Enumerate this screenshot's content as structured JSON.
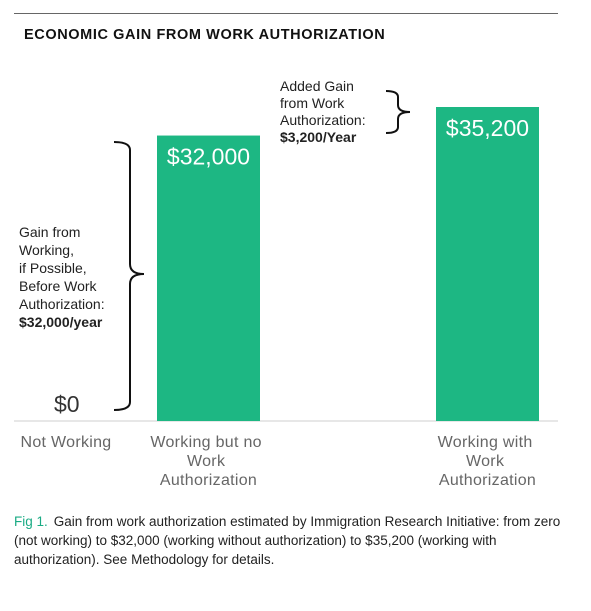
{
  "title": "ECONOMIC GAIN FROM WORK AUTHORIZATION",
  "colors": {
    "bar": "#1db783",
    "accent": "#1aab84",
    "baseline": "#cfcfcf"
  },
  "chart_data": {
    "type": "bar",
    "categories": [
      [
        "Not Working"
      ],
      [
        "Working but no",
        "Work",
        "Authorization"
      ],
      [
        "Working with",
        "Work",
        "Authorization"
      ]
    ],
    "values": [
      0,
      32000,
      35200
    ],
    "bar_labels": [
      "$0",
      "$32,000",
      "$35,200"
    ],
    "ylim": [
      0,
      35200
    ],
    "annotations": [
      {
        "lines": [
          "Gain from",
          "Working,",
          "if Possible,",
          "Before Work",
          "Authorization:"
        ],
        "value": "$32,000/year"
      },
      {
        "lines": [
          "Added Gain",
          "from Work",
          "Authorization:"
        ],
        "value": "$3,200/Year"
      }
    ],
    "grid": false
  },
  "caption": {
    "fig_label": "Fig 1.",
    "text": "Gain from work authorization estimated by Immigration Research Initiative: from zero (not working) to $32,000 (working without authorization) to $35,200 (working with authorization). See Methodology for details."
  }
}
